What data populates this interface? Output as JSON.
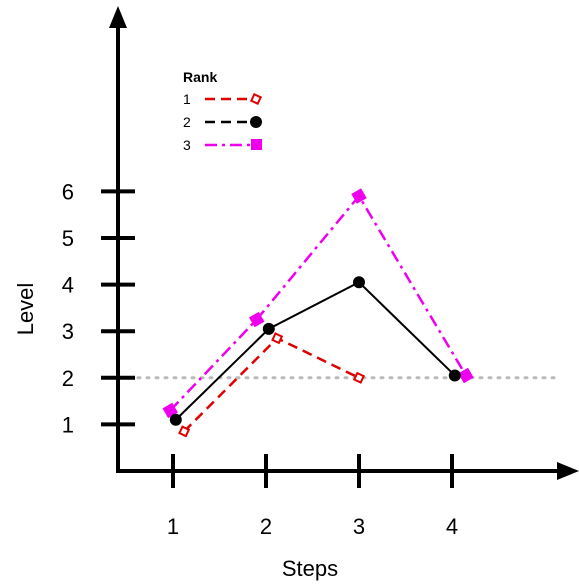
{
  "chart_data": {
    "type": "line",
    "title": "",
    "xlabel": "Steps",
    "ylabel": "Level",
    "xticks": [
      "1",
      "2",
      "3",
      "4"
    ],
    "yticks": [
      "1",
      "2",
      "3",
      "4",
      "5",
      "6"
    ],
    "xlim": [
      0.4,
      5.2
    ],
    "ylim": [
      0,
      9.3
    ],
    "reference_line": {
      "y": 2,
      "style": "dotted",
      "color": "#bbbbbb"
    },
    "legend": {
      "title": "Rank",
      "placement": "top-left"
    },
    "series": [
      {
        "name": "1",
        "color": "#e00000",
        "line_style": "dashed",
        "marker": "diamond-open",
        "x": [
          1.12,
          2.12,
          3.0
        ],
        "y": [
          0.85,
          2.85,
          2.0
        ]
      },
      {
        "name": "2",
        "color": "#000000",
        "line_style": "solid",
        "marker": "circle",
        "x": [
          1.03,
          2.03,
          3.0,
          4.03
        ],
        "y": [
          1.1,
          3.05,
          4.05,
          2.05
        ]
      },
      {
        "name": "3",
        "color": "#ee00ee",
        "line_style": "dashdot",
        "marker": "diamond",
        "x": [
          0.97,
          1.9,
          3.0,
          4.15
        ],
        "y": [
          1.3,
          3.25,
          5.9,
          2.05
        ]
      }
    ]
  }
}
